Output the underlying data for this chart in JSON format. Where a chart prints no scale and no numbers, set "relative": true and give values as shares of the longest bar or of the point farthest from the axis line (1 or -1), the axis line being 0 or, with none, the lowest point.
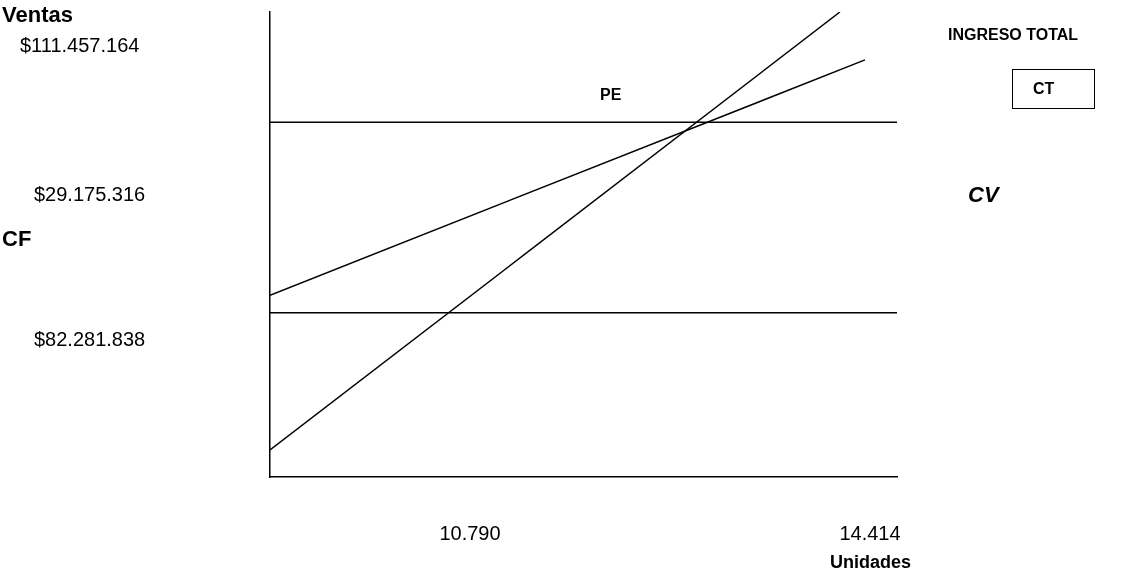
{
  "chart_data": {
    "type": "line",
    "relative": true,
    "xlabel": "Unidades",
    "xlim": [
      8978,
      14659
    ],
    "xticks": [
      {
        "value": 10790,
        "label": "10.790"
      },
      {
        "value": 14414,
        "label": "14.414"
      }
    ],
    "series": [
      {
        "color": "#000000",
        "x": [
          8978,
          14142
        ],
        "values": [
          0.058,
          1
        ]
      },
      {
        "color": "#000000",
        "x": [
          8978,
          14369
        ],
        "values": [
          0.391,
          0.897
        ]
      },
      {
        "color": "#000000",
        "x": [
          8978,
          14659
        ],
        "values": [
          0.763,
          0.763
        ]
      },
      {
        "color": "#000000",
        "x": [
          8978,
          14659
        ],
        "values": [
          0.353,
          0.353
        ]
      }
    ],
    "annotations": [
      "Ventas",
      "$111.457.164",
      "$29.175.316",
      "CF",
      "$82.281.838",
      "PE",
      "INGRESO TOTAL",
      "CT",
      "CV"
    ]
  }
}
